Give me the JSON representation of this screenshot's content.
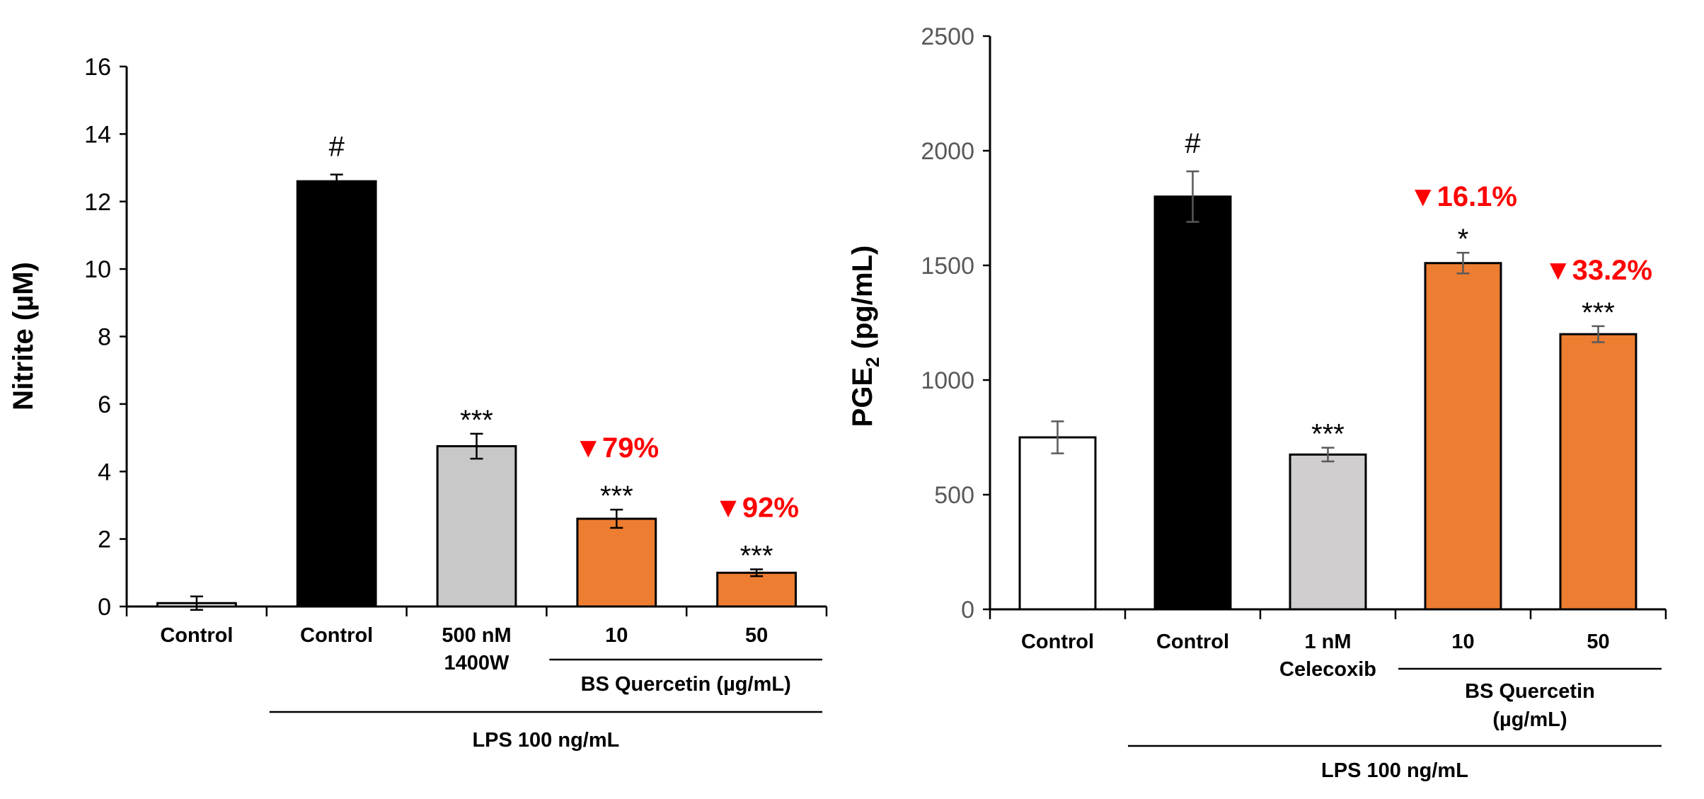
{
  "chart_data": [
    {
      "type": "bar",
      "ylabel": "Nitrite (µM)",
      "ylim": [
        0,
        16
      ],
      "yticks": [
        0,
        2,
        4,
        6,
        8,
        10,
        12,
        14,
        16
      ],
      "grid": false,
      "categories": [
        [
          "Control"
        ],
        [
          "Control"
        ],
        [
          "500 nM",
          "1400W"
        ],
        [
          "10"
        ],
        [
          "50"
        ]
      ],
      "values": [
        0.1,
        12.6,
        4.75,
        2.6,
        1.0
      ],
      "errors": [
        0.2,
        0.2,
        0.37,
        0.27,
        0.1
      ],
      "colors": [
        "#ffffff",
        "#000000",
        "#c8c8c8",
        "#ed7d31",
        "#ed7d31"
      ],
      "significance": [
        "",
        "#",
        "***",
        "***",
        "***"
      ],
      "reduction": [
        "",
        "",
        "",
        "▼79%",
        "▼92%"
      ],
      "groups": [
        {
          "label": [
            "BS Quercetin (µg/mL)"
          ],
          "from": 3,
          "to": 4
        },
        {
          "label": [
            "LPS 100 ng/mL"
          ],
          "from": 1,
          "to": 4
        }
      ]
    },
    {
      "type": "bar",
      "ylabel": "PGE",
      "ylabel_sub": "2",
      "ylabel_unit": " (pg/mL)",
      "ylim": [
        0,
        2500
      ],
      "yticks": [
        0,
        500,
        1000,
        1500,
        2000,
        2500
      ],
      "grid": false,
      "categories": [
        [
          "Control"
        ],
        [
          "Control"
        ],
        [
          "1 nM",
          "Celecoxib"
        ],
        [
          "10"
        ],
        [
          "50"
        ]
      ],
      "values": [
        750,
        1800,
        675,
        1510,
        1200
      ],
      "errors": [
        70,
        110,
        30,
        45,
        35
      ],
      "colors": [
        "#ffffff",
        "#000000",
        "#d0cece",
        "#ed7d31",
        "#ed7d31"
      ],
      "significance": [
        "",
        "#",
        "***",
        "*",
        "***"
      ],
      "reduction": [
        "",
        "",
        "",
        "▼16.1%",
        "▼33.2%"
      ],
      "groups": [
        {
          "label": [
            "BS Quercetin",
            "(µg/mL)"
          ],
          "from": 3,
          "to": 4
        },
        {
          "label": [
            "LPS 100 ng/mL"
          ],
          "from": 1,
          "to": 4
        }
      ]
    }
  ]
}
